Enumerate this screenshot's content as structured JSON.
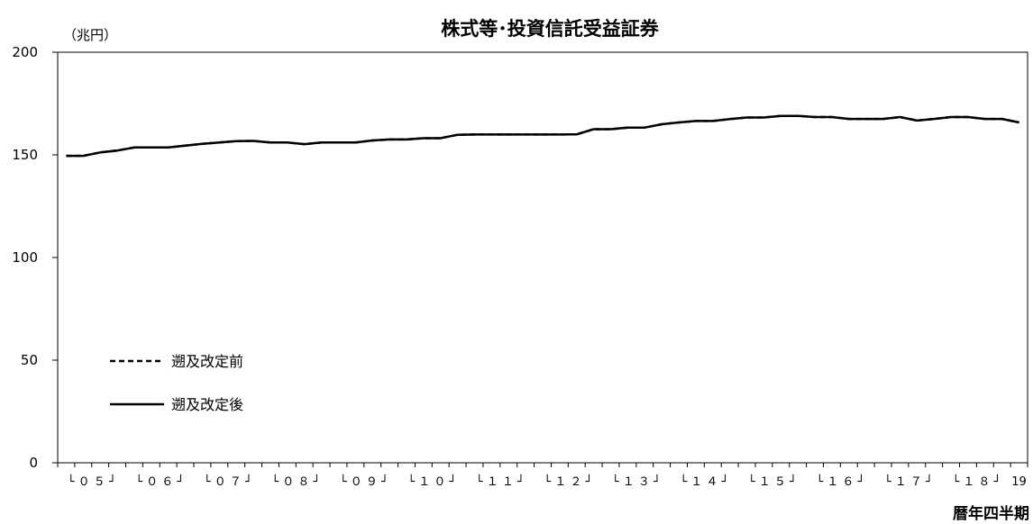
{
  "chart_data": {
    "type": "line",
    "title": "株式等･投資信託受益証券",
    "ylabel": "（兆円）",
    "xlabel": "暦年四半期",
    "ylim": [
      0,
      200
    ],
    "yticks": [
      0,
      50,
      100,
      150,
      200
    ],
    "categories": [
      "05Q1",
      "05Q2",
      "05Q3",
      "05Q4",
      "06Q1",
      "06Q2",
      "06Q3",
      "06Q4",
      "07Q1",
      "07Q2",
      "07Q3",
      "07Q4",
      "08Q1",
      "08Q2",
      "08Q3",
      "08Q4",
      "09Q1",
      "09Q2",
      "09Q3",
      "09Q4",
      "10Q1",
      "10Q2",
      "10Q3",
      "10Q4",
      "11Q1",
      "11Q2",
      "11Q3",
      "11Q4",
      "12Q1",
      "12Q2",
      "12Q3",
      "12Q4",
      "13Q1",
      "13Q2",
      "13Q3",
      "13Q4",
      "14Q1",
      "14Q2",
      "14Q3",
      "14Q4",
      "15Q1",
      "15Q2",
      "15Q3",
      "15Q4",
      "16Q1",
      "16Q2",
      "16Q3",
      "16Q4",
      "17Q1",
      "17Q2",
      "17Q3",
      "17Q4",
      "18Q1",
      "18Q2",
      "18Q3",
      "18Q4",
      "19Q1"
    ],
    "xtick_labels": [
      {
        "label": "└ ０ ５ ┘",
        "start": 0
      },
      {
        "label": "└ ０ ６ ┘",
        "start": 4
      },
      {
        "label": "└ ０ ７ ┘",
        "start": 8
      },
      {
        "label": "└ ０ ８ ┘",
        "start": 12
      },
      {
        "label": "└ ０ ９ ┘",
        "start": 16
      },
      {
        "label": "└ １ ０ ┘",
        "start": 20
      },
      {
        "label": "└ １ １ ┘",
        "start": 24
      },
      {
        "label": "└ １ ２ ┘",
        "start": 28
      },
      {
        "label": "└ １ ３ ┘",
        "start": 32
      },
      {
        "label": "└ １ ４ ┘",
        "start": 36
      },
      {
        "label": "└ １ ５ ┘",
        "start": 40
      },
      {
        "label": "└ １ ６ ┘",
        "start": 44
      },
      {
        "label": "└ １ ７ ┘",
        "start": 48
      },
      {
        "label": "└ １ ８ ┘",
        "start": 52
      },
      {
        "label": "19",
        "start": 56
      }
    ],
    "series": [
      {
        "name": "遡及改定前",
        "style": "dashed",
        "color": "#000000",
        "values": [
          149.5,
          149.5,
          151.2,
          152.1,
          153.6,
          153.6,
          153.6,
          154.5,
          155.4,
          156.0,
          156.7,
          156.8,
          156.0,
          156.0,
          155.2,
          156.0,
          156.0,
          156.0,
          157.0,
          157.5,
          157.5,
          158.1,
          158.1,
          159.8,
          159.9,
          159.9,
          159.9,
          159.9,
          159.9,
          159.9,
          160.0,
          162.5,
          162.5,
          163.3,
          163.3,
          164.9,
          165.8,
          166.5,
          166.5,
          167.4,
          168.2,
          168.2,
          169.0,
          169.0,
          168.4,
          168.4,
          167.5,
          167.5,
          167.5,
          168.4,
          166.7,
          167.5,
          168.4,
          168.4,
          167.5,
          167.5,
          165.8
        ]
      },
      {
        "name": "遡及改定後",
        "style": "solid",
        "color": "#000000",
        "values": [
          149.5,
          149.5,
          151.2,
          152.1,
          153.6,
          153.6,
          153.6,
          154.5,
          155.4,
          156.0,
          156.7,
          156.8,
          156.0,
          156.0,
          155.2,
          156.0,
          156.0,
          156.0,
          157.0,
          157.5,
          157.5,
          158.1,
          158.1,
          159.8,
          159.9,
          159.9,
          159.9,
          159.9,
          159.9,
          159.9,
          160.0,
          162.5,
          162.5,
          163.3,
          163.3,
          164.9,
          165.8,
          166.5,
          166.5,
          167.4,
          168.2,
          168.2,
          169.0,
          169.0,
          168.4,
          168.4,
          167.5,
          167.5,
          167.5,
          168.4,
          166.7,
          167.5,
          168.4,
          168.4,
          167.5,
          167.5,
          165.8
        ]
      }
    ],
    "legend_position": "bottom-left",
    "grid": false
  }
}
